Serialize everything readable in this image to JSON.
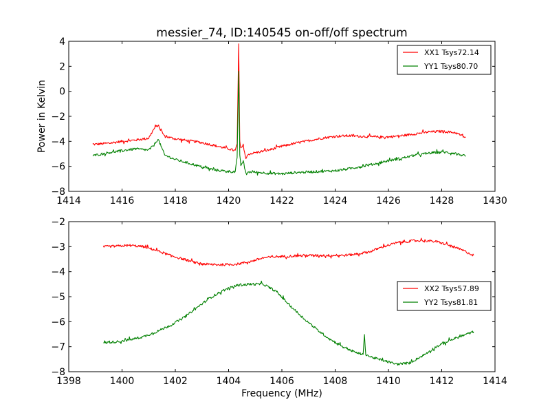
{
  "figure": {
    "title": "messier_74, ID:140545 on-off/off spectrum"
  },
  "chart_data": [
    {
      "type": "line",
      "panel": "top",
      "title": "messier_74, ID:140545 on-off/off spectrum",
      "xlabel": "",
      "ylabel": "Power in Kelvin",
      "xlim": [
        1414,
        1430
      ],
      "ylim": [
        -8,
        4
      ],
      "xticks": [
        1414,
        1416,
        1418,
        1420,
        1422,
        1424,
        1426,
        1428,
        1430
      ],
      "xtick_labels": [
        "1414",
        "1416",
        "1418",
        "1420",
        "1422",
        "1424",
        "1426",
        "1428",
        "1430"
      ],
      "yticks": [
        -8,
        -6,
        -4,
        -2,
        0,
        2,
        4
      ],
      "ytick_labels": [
        "−8",
        "−6",
        "−4",
        "−2",
        "0",
        "2",
        "4"
      ],
      "grid": false,
      "legend_position": "top-right",
      "series": [
        {
          "name": "XX1 Tsys72.14",
          "color": "#ff0000",
          "x": [
            1414.9,
            1415.5,
            1416.0,
            1416.5,
            1417.0,
            1417.2,
            1417.35,
            1417.6,
            1418.0,
            1418.5,
            1419.0,
            1419.5,
            1420.0,
            1420.25,
            1420.32,
            1420.38,
            1420.42,
            1420.46,
            1420.55,
            1420.65,
            1420.75,
            1420.9,
            1421.5,
            1422.0,
            1422.5,
            1423.0,
            1423.5,
            1424.0,
            1424.5,
            1425.0,
            1425.5,
            1426.0,
            1426.5,
            1427.0,
            1427.5,
            1428.0,
            1428.5,
            1428.9
          ],
          "y": [
            -4.25,
            -4.15,
            -4.0,
            -3.9,
            -3.75,
            -3.0,
            -2.7,
            -3.6,
            -3.8,
            -3.95,
            -4.1,
            -4.35,
            -4.6,
            -4.75,
            -4.2,
            3.8,
            -4.0,
            -4.6,
            -4.3,
            -5.4,
            -5.0,
            -4.95,
            -4.7,
            -4.4,
            -4.15,
            -3.95,
            -3.75,
            -3.6,
            -3.55,
            -3.6,
            -3.65,
            -3.65,
            -3.55,
            -3.4,
            -3.25,
            -3.2,
            -3.3,
            -3.7
          ]
        },
        {
          "name": "YY1 Tsys80.70",
          "color": "#008000",
          "x": [
            1414.9,
            1415.5,
            1416.0,
            1416.5,
            1417.0,
            1417.2,
            1417.35,
            1417.6,
            1418.0,
            1418.5,
            1419.0,
            1419.5,
            1420.0,
            1420.25,
            1420.32,
            1420.38,
            1420.42,
            1420.46,
            1420.55,
            1420.65,
            1420.75,
            1420.9,
            1421.5,
            1422.0,
            1422.5,
            1423.0,
            1423.5,
            1424.0,
            1424.5,
            1425.0,
            1425.5,
            1426.0,
            1426.5,
            1427.0,
            1427.5,
            1428.0,
            1428.5,
            1428.9
          ],
          "y": [
            -5.15,
            -4.9,
            -4.75,
            -4.6,
            -4.7,
            -4.3,
            -3.8,
            -5.1,
            -5.45,
            -5.75,
            -6.05,
            -6.3,
            -6.4,
            -6.45,
            -5.3,
            1.6,
            -5.2,
            -5.9,
            -5.6,
            -6.6,
            -6.45,
            -6.45,
            -6.55,
            -6.6,
            -6.5,
            -6.45,
            -6.4,
            -6.35,
            -6.2,
            -6.0,
            -5.8,
            -5.55,
            -5.35,
            -5.1,
            -4.95,
            -4.85,
            -4.95,
            -5.2
          ]
        }
      ]
    },
    {
      "type": "line",
      "panel": "bottom",
      "title": "",
      "xlabel": "Frequency (MHz)",
      "ylabel": "",
      "xlim": [
        1398,
        1414
      ],
      "ylim": [
        -8,
        -2
      ],
      "xticks": [
        1398,
        1400,
        1402,
        1404,
        1406,
        1408,
        1410,
        1412,
        1414
      ],
      "xtick_labels": [
        "1398",
        "1400",
        "1402",
        "1404",
        "1406",
        "1408",
        "1410",
        "1412",
        "1414"
      ],
      "yticks": [
        -8,
        -7,
        -6,
        -5,
        -4,
        -3,
        -2
      ],
      "ytick_labels": [
        "−8",
        "−7",
        "−6",
        "−5",
        "−4",
        "−3",
        "−2"
      ],
      "grid": false,
      "legend_position": "center-right",
      "series": [
        {
          "name": "XX2 Tsys57.89",
          "color": "#ff0000",
          "x": [
            1399.3,
            1399.8,
            1400.3,
            1400.8,
            1401.3,
            1401.8,
            1402.3,
            1402.8,
            1403.3,
            1403.8,
            1404.3,
            1404.8,
            1405.3,
            1405.8,
            1406.3,
            1406.8,
            1407.3,
            1407.8,
            1408.3,
            1408.8,
            1409.3,
            1409.8,
            1410.3,
            1410.8,
            1411.3,
            1411.8,
            1412.3,
            1412.8,
            1413.2
          ],
          "y": [
            -3.0,
            -2.98,
            -2.95,
            -3.0,
            -3.15,
            -3.35,
            -3.5,
            -3.65,
            -3.72,
            -3.72,
            -3.7,
            -3.6,
            -3.45,
            -3.4,
            -3.38,
            -3.35,
            -3.35,
            -3.35,
            -3.35,
            -3.3,
            -3.2,
            -3.0,
            -2.85,
            -2.78,
            -2.75,
            -2.8,
            -2.95,
            -3.15,
            -3.35
          ]
        },
        {
          "name": "YY2 Tsys81.81",
          "color": "#008000",
          "x": [
            1399.3,
            1399.8,
            1400.3,
            1400.8,
            1401.3,
            1401.8,
            1402.3,
            1402.8,
            1403.3,
            1403.8,
            1404.3,
            1404.8,
            1405.3,
            1405.8,
            1406.3,
            1406.8,
            1407.3,
            1407.8,
            1408.3,
            1408.8,
            1409.05,
            1409.1,
            1409.15,
            1409.3,
            1409.8,
            1410.3,
            1410.8,
            1411.3,
            1411.8,
            1412.3,
            1412.8,
            1413.2
          ],
          "y": [
            -6.85,
            -6.8,
            -6.72,
            -6.6,
            -6.4,
            -6.15,
            -5.85,
            -5.45,
            -5.05,
            -4.75,
            -4.55,
            -4.5,
            -4.5,
            -4.8,
            -5.35,
            -5.85,
            -6.3,
            -6.7,
            -7.0,
            -7.25,
            -7.3,
            -6.55,
            -7.3,
            -7.4,
            -7.55,
            -7.7,
            -7.65,
            -7.35,
            -7.0,
            -6.75,
            -6.55,
            -6.4
          ]
        }
      ]
    }
  ]
}
